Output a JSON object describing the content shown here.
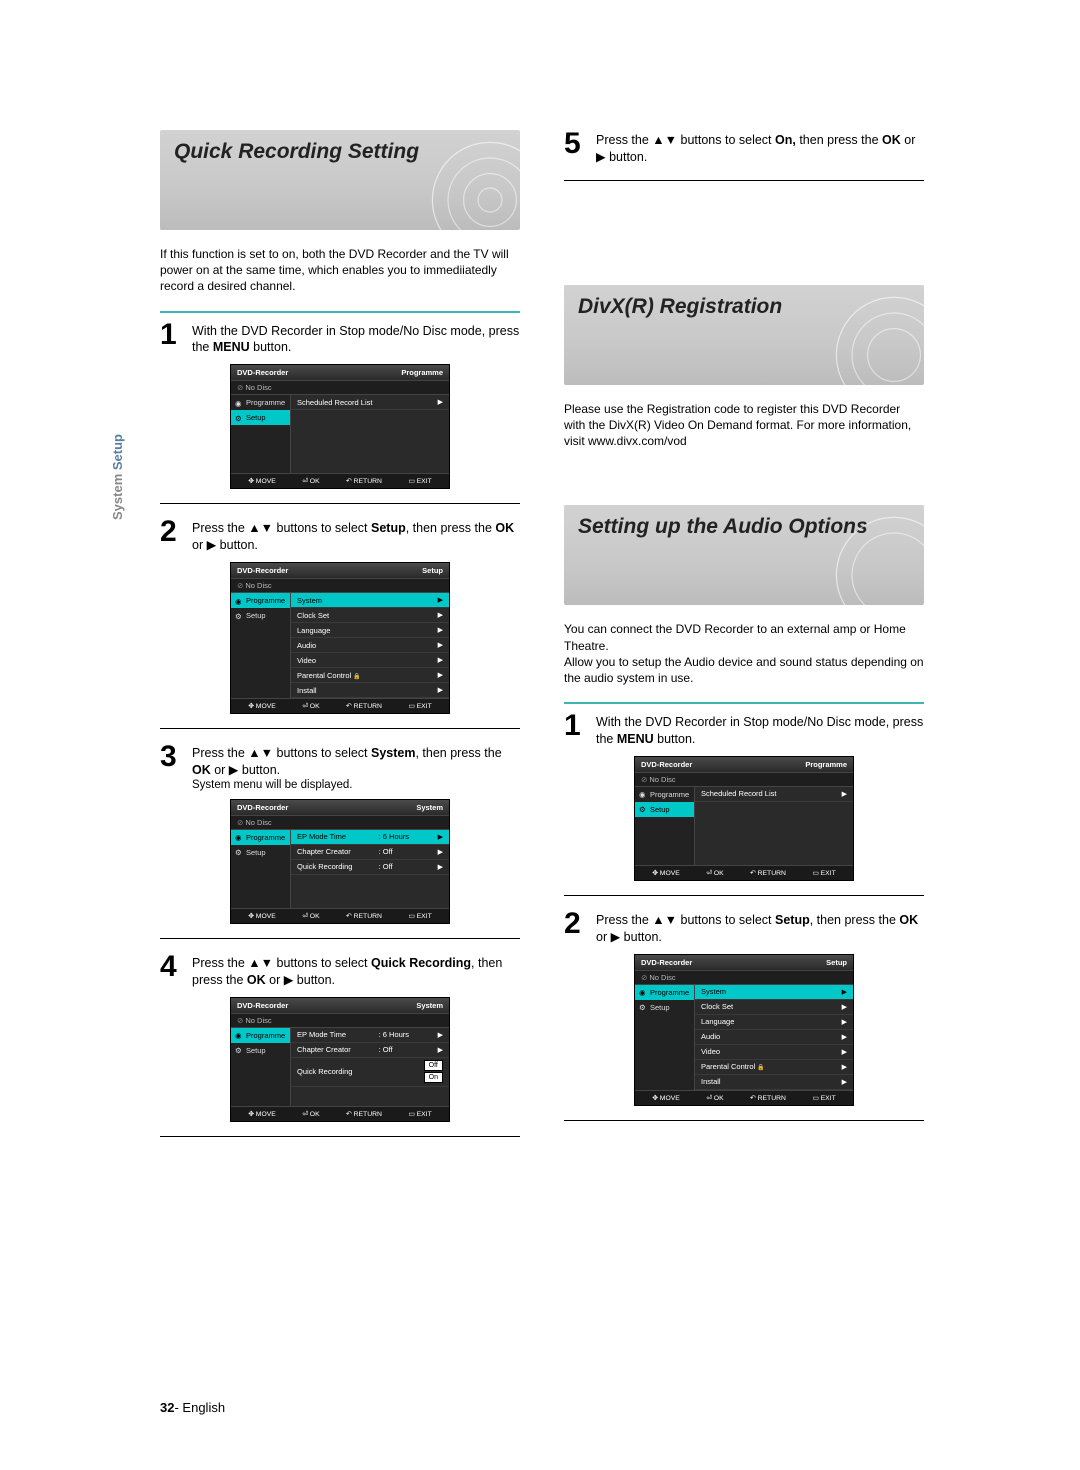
{
  "sidebar": {
    "prefix": "System ",
    "highlight": "Setup"
  },
  "pageFooter": {
    "num": "32",
    "sep": "- ",
    "lang": "English"
  },
  "colors": {
    "teal": "#00c8c8",
    "ruleTeal": "#3cb5b5",
    "headerBg": "#cccccc",
    "osdBg": "#2a2a2a"
  },
  "sectionA": {
    "title": "Quick Recording Setting",
    "intro": "If this function is set to on, both the DVD Recorder and the TV will power on at the same time, which enables you to immediiatedly record a desired channel.",
    "steps": [
      {
        "n": "1",
        "text": "With the DVD Recorder in Stop mode/No Disc mode, press the <b>MENU</b> button."
      },
      {
        "n": "2",
        "text": "Press the ▲▼ buttons to select <b>Setup</b>, then press the <b>OK</b> or ▶ button."
      },
      {
        "n": "3",
        "text": "Press the ▲▼ buttons to select <b>System</b>, then press the <b>OK</b> or ▶ button.",
        "sub": "System menu will be displayed."
      },
      {
        "n": "4",
        "text": "Press the ▲▼ buttons to select <b>Quick Recording</b>, then press the <b>OK</b> or ▶ button."
      },
      {
        "n": "5",
        "text": "Press the ▲▼ buttons to select <b>On,</b> then press the <b>OK</b> or ▶ button."
      }
    ]
  },
  "sectionB": {
    "title": "DivX(R) Registration",
    "intro": "Please use the Registration code to register this DVD Recorder with the DivX(R) Video On Demand format. For more information, visit www.divx.com/vod"
  },
  "sectionC": {
    "title": "Setting up the Audio Options",
    "intro": "You can connect the DVD Recorder to an external amp or Home Theatre.\nAllow you to setup the Audio device and sound status depending on the audio system in use.",
    "steps": [
      {
        "n": "1",
        "text": "With the DVD Recorder in Stop mode/No Disc mode, press the <b>MENU</b> button."
      },
      {
        "n": "2",
        "text": "Press the ▲▼ buttons to select <b>Setup</b>, then press the <b>OK</b> or ▶ button."
      }
    ]
  },
  "osd": {
    "common": {
      "brand": "DVD-Recorder",
      "noDisc": "No Disc",
      "sideProgramme": "Programme",
      "sideSetup": "Setup",
      "footerMove": "MOVE",
      "footerOk": "OK",
      "footerReturn": "RETURN",
      "footerExit": "EXIT"
    },
    "screen1": {
      "corner": "Programme",
      "rows": [
        {
          "label": "Scheduled Record List",
          "arrow": true
        }
      ],
      "highlightSide": "setup"
    },
    "screen2": {
      "corner": "Setup",
      "highlightSide": "programme",
      "rows": [
        {
          "label": "System",
          "hl": true,
          "arrow": true
        },
        {
          "label": "Clock Set",
          "arrow": true
        },
        {
          "label": "Language",
          "arrow": true
        },
        {
          "label": "Audio",
          "arrow": true
        },
        {
          "label": "Video",
          "arrow": true
        },
        {
          "label": "Parental Control",
          "lock": true,
          "arrow": true
        },
        {
          "label": "Install",
          "arrow": true
        }
      ]
    },
    "screen3": {
      "corner": "System",
      "highlightSide": "programme",
      "rows": [
        {
          "label": "EP Mode Time",
          "val": ": 6 Hours",
          "hl": true,
          "arrow": true
        },
        {
          "label": "Chapter Creator",
          "val": ": Off",
          "arrow": true
        },
        {
          "label": "Quick Recording",
          "val": ": Off",
          "arrow": true
        }
      ]
    },
    "screen4": {
      "corner": "System",
      "highlightSide": "programme",
      "rows": [
        {
          "label": "EP Mode Time",
          "val": ": 6 Hours",
          "arrow": true
        },
        {
          "label": "Chapter Creator",
          "val": ": Off",
          "arrow": true
        },
        {
          "label": "Quick Recording",
          "opts": [
            "Off",
            "On"
          ],
          "hlopt": 0
        }
      ]
    }
  }
}
